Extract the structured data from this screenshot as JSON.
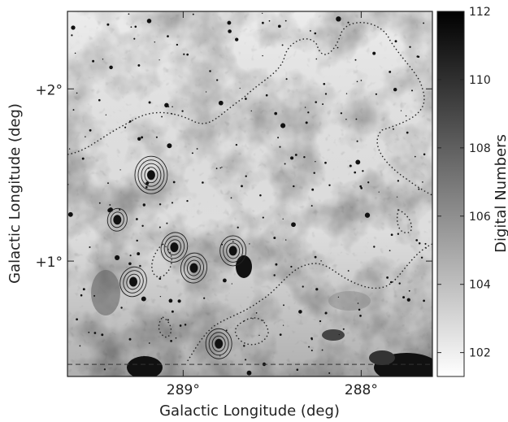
{
  "chart_data": {
    "type": "heatmap",
    "title": "",
    "xlabel": "Galactic Longitude (deg)",
    "ylabel": "Galactic Longitude (deg)",
    "xlim": [
      289.65,
      287.6
    ],
    "ylim": [
      0.33,
      2.45
    ],
    "x_ticks": [
      {
        "value": 289.0,
        "label": "289°"
      },
      {
        "value": 288.0,
        "label": "288°"
      }
    ],
    "y_ticks": [
      {
        "value": 1.0,
        "label": "+1°"
      },
      {
        "value": 2.0,
        "label": "+2°"
      }
    ],
    "colorbar": {
      "label": "Digital Numbers",
      "range": [
        101.3,
        112
      ],
      "ticks": [
        102,
        104,
        106,
        108,
        110,
        112
      ],
      "tick_labels": [
        "102",
        "104",
        "106",
        "108",
        "110",
        "112"
      ],
      "colormap": "gray_r"
    },
    "overlays": {
      "dotted_contour": "low-level emission boundary",
      "solid_contours": "compact emission peaks",
      "dashed_line_y": 0.4
    },
    "contour_peaks": [
      {
        "lon": 289.18,
        "lat": 1.5,
        "levels": 4
      },
      {
        "lon": 289.37,
        "lat": 1.24,
        "levels": 2
      },
      {
        "lon": 289.05,
        "lat": 1.08,
        "levels": 3
      },
      {
        "lon": 288.72,
        "lat": 1.06,
        "levels": 3
      },
      {
        "lon": 288.94,
        "lat": 0.96,
        "levels": 3
      },
      {
        "lon": 289.28,
        "lat": 0.88,
        "levels": 3
      },
      {
        "lon": 288.8,
        "lat": 0.52,
        "levels": 3
      }
    ],
    "grid": false,
    "legend": "none"
  }
}
